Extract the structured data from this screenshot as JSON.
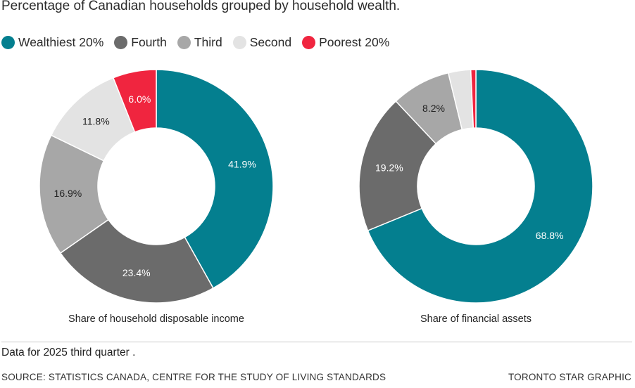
{
  "title": "Percentage of Canadian households grouped by household wealth.",
  "legend": [
    {
      "name": "Wealthiest 20%",
      "color": "#047f8f"
    },
    {
      "name": "Fourth",
      "color": "#6b6b6b"
    },
    {
      "name": "Third",
      "color": "#a7a7a7"
    },
    {
      "name": "Second",
      "color": "#e3e3e3"
    },
    {
      "name": "Poorest 20%",
      "color": "#f0253f"
    }
  ],
  "chart_data": [
    {
      "type": "pie",
      "title": "Share of household disposable income",
      "categories": [
        "Wealthiest 20%",
        "Fourth",
        "Third",
        "Second",
        "Poorest 20%"
      ],
      "values": [
        41.9,
        23.4,
        16.9,
        11.8,
        6.0
      ],
      "labels": [
        "41.9%",
        "23.4%",
        "16.9%",
        "11.8%",
        "6.0%"
      ]
    },
    {
      "type": "pie",
      "title": "Share of financial assets",
      "categories": [
        "Wealthiest 20%",
        "Fourth",
        "Third",
        "Second",
        "Poorest 20%"
      ],
      "values": [
        68.8,
        19.2,
        8.2,
        3.1,
        0.7
      ],
      "labels": [
        "68.8%",
        "19.2%",
        "8.2%",
        "",
        ""
      ]
    }
  ],
  "note": "Data for 2025 third quarter .",
  "source": "SOURCE: STATISTICS CANADA, CENTRE FOR THE STUDY OF LIVING STANDARDS",
  "credit": "TORONTO STAR GRAPHIC"
}
